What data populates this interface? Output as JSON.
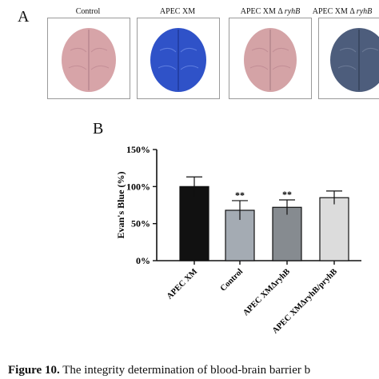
{
  "panel_a": {
    "letter": "A",
    "brains": [
      {
        "caption_main": "Control",
        "caption_italic": "",
        "color": "#d7a4a8"
      },
      {
        "caption_main": "APEC XM",
        "caption_italic": "",
        "color": "#2f52c8"
      },
      {
        "caption_main": "APEC XM Δ ",
        "caption_italic": "ryhB",
        "color": "#d4a3a6"
      },
      {
        "caption_main": "APEC XM Δ ",
        "caption_italic": "ryhB",
        "color": "#4d5d7c"
      }
    ]
  },
  "panel_b": {
    "letter": "B",
    "chart_data": {
      "type": "bar",
      "categories": [
        "APEC XM",
        "Control",
        "APEC XMΔryhB",
        "APEC XMΔryhB/pryhB"
      ],
      "values": [
        100,
        68,
        72,
        85
      ],
      "errors": [
        13,
        13,
        10,
        9
      ],
      "significance": [
        "",
        "**",
        "**",
        ""
      ],
      "bar_colors": [
        "#111111",
        "#a4abb3",
        "#868b90",
        "#dcdcdc"
      ],
      "ylabel": "Evan's Blue (%)",
      "yticks": [
        "0%",
        "50%",
        "100%",
        "150%"
      ],
      "ylim": [
        0,
        150
      ]
    }
  },
  "caption": {
    "label": "Figure 10.",
    "text": " The integrity determination of blood-brain barrier b"
  }
}
